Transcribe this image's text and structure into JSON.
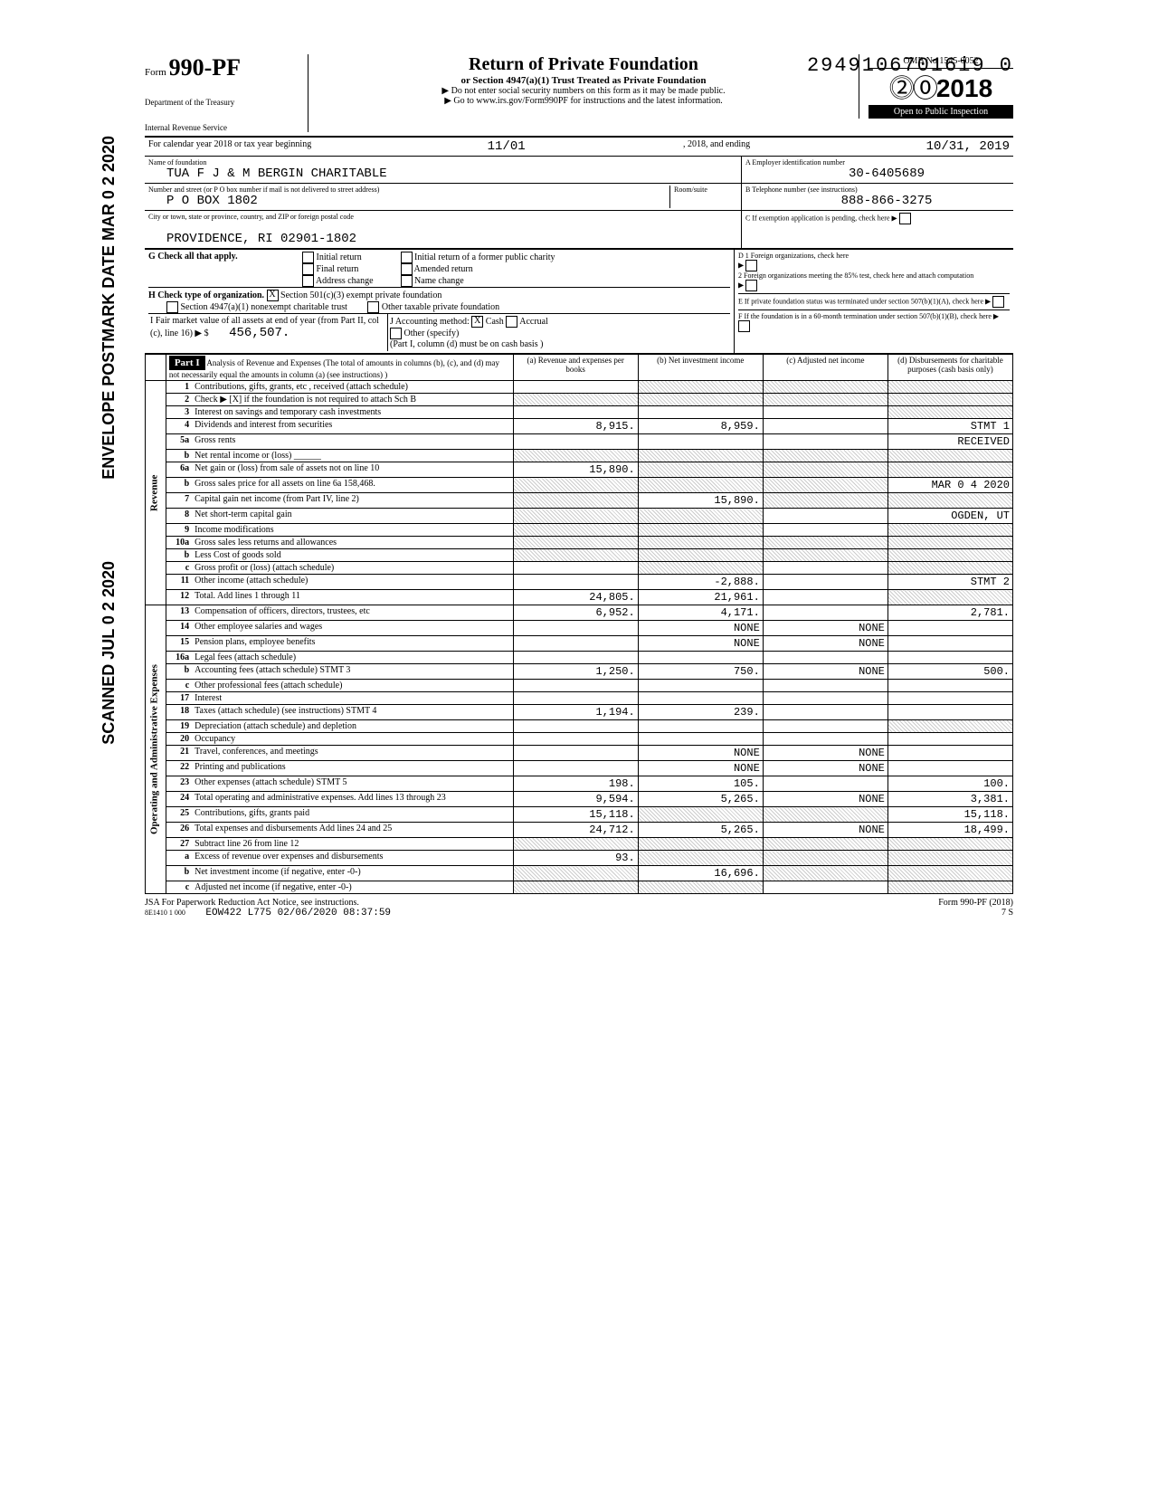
{
  "dln": "29491067016i9 0",
  "form": {
    "prefix": "Form",
    "number": "990-PF",
    "dept1": "Department of the Treasury",
    "dept2": "Internal Revenue Service"
  },
  "title": {
    "main": "Return of Private Foundation",
    "sub": "or Section 4947(a)(1) Trust Treated as Private Foundation",
    "note1": "▶ Do not enter social security numbers on this form as it may be made public.",
    "note2": "▶ Go to www.irs.gov/Form990PF for instructions and the latest information."
  },
  "yearbox": {
    "omb": "OMB No 1545-0052",
    "year": "2018",
    "inspection": "Open to Public Inspection"
  },
  "calendar": {
    "label": "For calendar year 2018 or tax year beginning",
    "begin": "11/01",
    "mid": ", 2018, and ending",
    "end": "10/31, 2019"
  },
  "entity": {
    "name_label": "Name of foundation",
    "name": "TUA F J & M BERGIN CHARITABLE",
    "addr_label": "Number and street (or P O  box number if mail is not delivered to street address)",
    "room_label": "Room/suite",
    "addr": "P O BOX 1802",
    "city_label": "City or town, state or province, country, and ZIP or foreign postal code",
    "city": "PROVIDENCE, RI 02901-1802",
    "ein_label": "A  Employer identification number",
    "ein": "30-6405689",
    "phone_label": "B  Telephone number (see instructions)",
    "phone": "888-866-3275",
    "c_label": "C  If exemption application is pending, check here",
    "d1": "D 1 Foreign organizations, check here",
    "d2": "2 Foreign organizations meeting the 85% test, check here and attach computation",
    "e": "E  If private foundation status was terminated under section 507(b)(1)(A), check here",
    "f": "F  If the foundation is in a 60-month termination under section 507(b)(1)(B), check here"
  },
  "g": {
    "label": "G Check all that apply.",
    "opts": [
      "Initial return",
      "Final return",
      "Address change",
      "Initial return of a former public charity",
      "Amended return",
      "Name change"
    ]
  },
  "h": {
    "label": "H Check type of organization.",
    "opt1": "Section 501(c)(3) exempt private foundation",
    "opt2": "Section 4947(a)(1) nonexempt charitable trust",
    "opt3": "Other taxable private foundation",
    "checked": "X"
  },
  "i": {
    "label": "I  Fair market value of all assets at end of year (from Part II, col (c), line 16) ▶ $",
    "value": "456,507."
  },
  "j": {
    "label": "J Accounting method:",
    "cash": "Cash",
    "accrual": "Accrual",
    "other": "Other (specify)",
    "note": "(Part I, column (d) must be on cash basis )",
    "checked": "X"
  },
  "part1": {
    "header": "Part I",
    "desc": "Analysis of Revenue and Expenses (The total of amounts in columns (b), (c), and (d) may not necessarily equal the amounts in column (a) (see instructions) )",
    "col_a": "(a) Revenue and expenses per books",
    "col_b": "(b) Net investment income",
    "col_c": "(c) Adjusted net income",
    "col_d": "(d) Disbursements for charitable purposes (cash basis only)"
  },
  "revenue_label": "Revenue",
  "expenses_label": "Operating and Administrative Expenses",
  "rows": [
    {
      "n": "1",
      "d": "Contributions, gifts, grants, etc , received (attach schedule)",
      "a": "",
      "b": "shaded",
      "c": "shaded",
      "dd": "shaded"
    },
    {
      "n": "2",
      "d": "Check ▶  [X]  if the foundation is not required to attach Sch B",
      "a": "shaded",
      "b": "shaded",
      "c": "shaded",
      "dd": "shaded"
    },
    {
      "n": "3",
      "d": "Interest on savings and temporary cash investments",
      "a": "",
      "b": "",
      "c": "",
      "dd": "shaded"
    },
    {
      "n": "4",
      "d": "Dividends and interest from securities",
      "a": "8,915.",
      "b": "8,959.",
      "c": "",
      "dd": "STMT 1"
    },
    {
      "n": "5a",
      "d": "Gross rents",
      "a": "",
      "b": "",
      "c": "",
      "dd": "RECEIVED"
    },
    {
      "n": "b",
      "d": "Net rental income or (loss) ______",
      "a": "shaded",
      "b": "shaded",
      "c": "shaded",
      "dd": "shaded"
    },
    {
      "n": "6a",
      "d": "Net gain or (loss) from sale of assets not on line 10",
      "a": "15,890.",
      "b": "shaded",
      "c": "shaded",
      "dd": "shaded"
    },
    {
      "n": "b",
      "d": "Gross sales price for all assets on line 6a   158,468.",
      "a": "shaded",
      "b": "shaded",
      "c": "shaded",
      "dd": "MAR 0 4 2020"
    },
    {
      "n": "7",
      "d": "Capital gain net income (from Part IV, line 2)",
      "a": "shaded",
      "b": "15,890.",
      "c": "shaded",
      "dd": "shaded"
    },
    {
      "n": "8",
      "d": "Net short-term capital gain",
      "a": "shaded",
      "b": "shaded",
      "c": "",
      "dd": "OGDEN, UT"
    },
    {
      "n": "9",
      "d": "Income modifications",
      "a": "shaded",
      "b": "shaded",
      "c": "",
      "dd": "shaded"
    },
    {
      "n": "10a",
      "d": "Gross sales less returns and allowances",
      "a": "shaded",
      "b": "shaded",
      "c": "shaded",
      "dd": "shaded"
    },
    {
      "n": "b",
      "d": "Less Cost of goods sold",
      "a": "shaded",
      "b": "shaded",
      "c": "shaded",
      "dd": "shaded"
    },
    {
      "n": "c",
      "d": "Gross profit or (loss) (attach schedule)",
      "a": "",
      "b": "shaded",
      "c": "",
      "dd": "shaded"
    },
    {
      "n": "11",
      "d": "Other income (attach schedule)",
      "a": "",
      "b": "-2,888.",
      "c": "",
      "dd": "STMT 2"
    },
    {
      "n": "12",
      "d": "Total. Add lines 1 through 11",
      "a": "24,805.",
      "b": "21,961.",
      "c": "",
      "dd": "shaded"
    },
    {
      "n": "13",
      "d": "Compensation of officers, directors, trustees, etc",
      "a": "6,952.",
      "b": "4,171.",
      "c": "",
      "dd": "2,781."
    },
    {
      "n": "14",
      "d": "Other employee salaries and wages",
      "a": "",
      "b": "NONE",
      "c": "NONE",
      "dd": ""
    },
    {
      "n": "15",
      "d": "Pension plans, employee benefits",
      "a": "",
      "b": "NONE",
      "c": "NONE",
      "dd": ""
    },
    {
      "n": "16a",
      "d": "Legal fees (attach schedule)",
      "a": "",
      "b": "",
      "c": "",
      "dd": ""
    },
    {
      "n": "b",
      "d": "Accounting fees (attach schedule) STMT 3",
      "a": "1,250.",
      "b": "750.",
      "c": "NONE",
      "dd": "500."
    },
    {
      "n": "c",
      "d": "Other professional fees (attach schedule)",
      "a": "",
      "b": "",
      "c": "",
      "dd": ""
    },
    {
      "n": "17",
      "d": "Interest",
      "a": "",
      "b": "",
      "c": "",
      "dd": ""
    },
    {
      "n": "18",
      "d": "Taxes (attach schedule) (see instructions) STMT 4",
      "a": "1,194.",
      "b": "239.",
      "c": "",
      "dd": ""
    },
    {
      "n": "19",
      "d": "Depreciation (attach schedule) and depletion",
      "a": "",
      "b": "",
      "c": "",
      "dd": "shaded"
    },
    {
      "n": "20",
      "d": "Occupancy",
      "a": "",
      "b": "",
      "c": "",
      "dd": ""
    },
    {
      "n": "21",
      "d": "Travel, conferences, and meetings",
      "a": "",
      "b": "NONE",
      "c": "NONE",
      "dd": ""
    },
    {
      "n": "22",
      "d": "Printing and publications",
      "a": "",
      "b": "NONE",
      "c": "NONE",
      "dd": ""
    },
    {
      "n": "23",
      "d": "Other expenses (attach schedule) STMT 5",
      "a": "198.",
      "b": "105.",
      "c": "",
      "dd": "100."
    },
    {
      "n": "24",
      "d": "Total operating and administrative expenses. Add lines 13 through 23",
      "a": "9,594.",
      "b": "5,265.",
      "c": "NONE",
      "dd": "3,381."
    },
    {
      "n": "25",
      "d": "Contributions, gifts, grants paid",
      "a": "15,118.",
      "b": "shaded",
      "c": "shaded",
      "dd": "15,118."
    },
    {
      "n": "26",
      "d": "Total expenses and disbursements Add lines 24 and 25",
      "a": "24,712.",
      "b": "5,265.",
      "c": "NONE",
      "dd": "18,499."
    },
    {
      "n": "27",
      "d": "Subtract line 26 from line 12",
      "a": "shaded",
      "b": "shaded",
      "c": "shaded",
      "dd": "shaded"
    },
    {
      "n": "a",
      "d": "Excess of revenue over expenses and disbursements",
      "a": "93.",
      "b": "shaded",
      "c": "shaded",
      "dd": "shaded"
    },
    {
      "n": "b",
      "d": "Net investment income (if negative, enter -0-)",
      "a": "shaded",
      "b": "16,696.",
      "c": "shaded",
      "dd": "shaded"
    },
    {
      "n": "c",
      "d": "Adjusted net income (if negative, enter -0-)",
      "a": "shaded",
      "b": "shaded",
      "c": "",
      "dd": "shaded"
    }
  ],
  "footer": {
    "jsa": "JSA For Paperwork Reduction Act Notice, see instructions.",
    "code": "8E1410 1 000",
    "batch": "EOW422 L775 02/06/2020 08:37:59",
    "formref": "Form 990-PF (2018)",
    "page": "7    S"
  },
  "stamps": {
    "postmark": "ENVELOPE POSTMARK DATE  MAR 0 2 2020",
    "scanned": "SCANNED JUL 0 2 2020"
  }
}
